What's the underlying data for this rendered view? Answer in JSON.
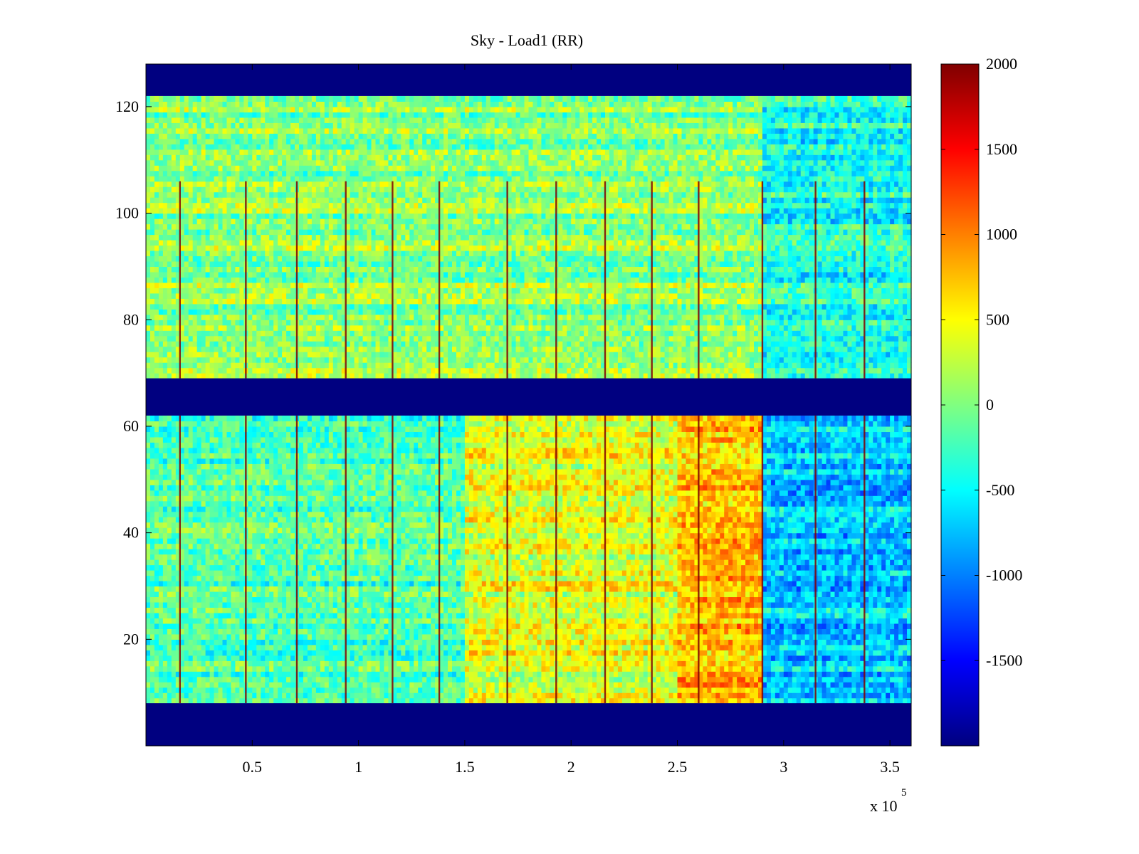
{
  "chart_data": {
    "type": "heatmap",
    "title": "Sky - Load1 (RR)",
    "xlabel": "",
    "ylabel": "",
    "xlim": [
      0,
      360000
    ],
    "ylim": [
      0,
      128
    ],
    "x_ticks": [
      50000,
      100000,
      150000,
      200000,
      250000,
      300000,
      350000
    ],
    "x_tick_labels": [
      "0.5",
      "1",
      "1.5",
      "2",
      "2.5",
      "3",
      "3.5"
    ],
    "x_exponent_label": "x 10",
    "x_exponent_power": "5",
    "y_ticks": [
      20,
      40,
      60,
      80,
      100,
      120
    ],
    "y_tick_labels": [
      "20",
      "40",
      "60",
      "80",
      "100",
      "120"
    ],
    "colorbar": {
      "colormap": "jet",
      "clim": [
        -2000,
        2000
      ],
      "ticks": [
        2000,
        1500,
        1000,
        500,
        0,
        -500,
        -1000,
        -1500
      ],
      "tick_labels": [
        "2000",
        "1500",
        "1000",
        "500",
        "0",
        "-500",
        "-1000",
        "-1500"
      ]
    },
    "masked_rows": [
      {
        "y_from": 0,
        "y_to": 8,
        "value": -2000
      },
      {
        "y_from": 62,
        "y_to": 69,
        "value": -2000
      },
      {
        "y_from": 122,
        "y_to": 128,
        "value": -2000
      }
    ],
    "regions": [
      {
        "y_from": 8,
        "y_to": 62,
        "x_from": 0,
        "x_to": 150000,
        "typical_value": -200
      },
      {
        "y_from": 8,
        "y_to": 62,
        "x_from": 150000,
        "x_to": 250000,
        "typical_value": 400
      },
      {
        "y_from": 8,
        "y_to": 62,
        "x_from": 250000,
        "x_to": 290000,
        "typical_value": 800
      },
      {
        "y_from": 8,
        "y_to": 62,
        "x_from": 290000,
        "x_to": 360000,
        "typical_value": -700
      },
      {
        "y_from": 69,
        "y_to": 122,
        "x_from": 0,
        "x_to": 290000,
        "typical_value": 50
      },
      {
        "y_from": 69,
        "y_to": 122,
        "x_from": 290000,
        "x_to": 360000,
        "typical_value": -400
      }
    ],
    "spike_columns_x": [
      16000,
      47000,
      71000,
      94000,
      116000,
      138000,
      170000,
      193000,
      216000,
      238000,
      260000,
      290000,
      315000,
      338000
    ],
    "spike_value": 2000
  }
}
